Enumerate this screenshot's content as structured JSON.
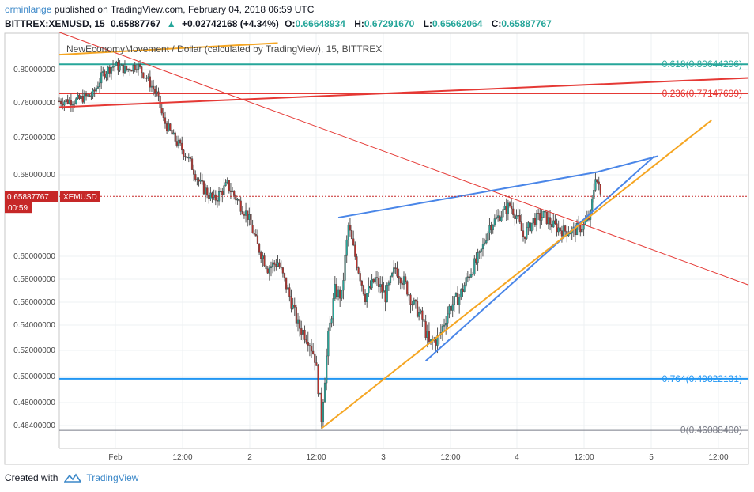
{
  "header": {
    "user": "orminlange",
    "published_text": "published on TradingView.com, February 04, 2018 06:59 UTC",
    "symbol": "BITTREX:XEMUSD, 15",
    "last": "0.65887767",
    "change_arrow": "▲",
    "change": "+0.02742168 (+4.34%)",
    "o_label": "O:",
    "o_value": "0.66648934",
    "h_label": "H:",
    "h_value": "0.67291670",
    "l_label": "L:",
    "l_value": "0.65662064",
    "c_label": "C:",
    "c_value": "0.65887767"
  },
  "footer": {
    "created_with": "Created with",
    "brand": "TradingView"
  },
  "colors": {
    "up": "#26a69a",
    "down": "#b7312c",
    "price_line": "#c62828",
    "fib_teal": "#26a69a",
    "fib_red": "#e53935",
    "fib_blue": "#2196f3",
    "fib_gray": "#787b86",
    "trend_red": "#e53935",
    "trend_blue": "#4a86e8",
    "trend_orange": "#f5a623"
  },
  "chart_data": {
    "type": "candlestick",
    "title": "NewEconomyMovement / Dollar (calculated by TradingView), 15, BITTREX",
    "interval_minutes": 15,
    "x_tick_labels": [
      "Feb",
      "12:00",
      "2",
      "12:00",
      "3",
      "12:00",
      "4",
      "12:00",
      "5",
      "12:00"
    ],
    "y_tick_labels": [
      "0.80000000",
      "0.76000000",
      "0.72000000",
      "0.68000000",
      "0.60000000",
      "0.58000000",
      "0.56000000",
      "0.54000000",
      "0.52000000",
      "0.50000000",
      "0.48000000",
      "0.46400000"
    ],
    "y_ticks": [
      0.8,
      0.76,
      0.72,
      0.68,
      0.6,
      0.58,
      0.56,
      0.54,
      0.52,
      0.5,
      0.48,
      0.464
    ],
    "current_price": 0.65887767,
    "current_price_label": "0.65887767",
    "symbol_badge": "XEMUSD",
    "countdown": "00:59",
    "fib_levels": [
      {
        "label": "0.618(0.80644296)",
        "value": 0.80644296,
        "color": "#26a69a"
      },
      {
        "label": "0.236(0.77147699)",
        "value": 0.77147699,
        "color": "#e53935"
      },
      {
        "label": "0.764(0.49822131)",
        "value": 0.49822131,
        "color": "#2196f3"
      },
      {
        "label": "0(0.46088400)",
        "value": 0.460884,
        "color": "#787b86"
      }
    ],
    "price_anchors": [
      {
        "t": 0,
        "p": 0.762
      },
      {
        "t": 10,
        "p": 0.763
      },
      {
        "t": 20,
        "p": 0.77
      },
      {
        "t": 26,
        "p": 0.795
      },
      {
        "t": 32,
        "p": 0.805
      },
      {
        "t": 40,
        "p": 0.8
      },
      {
        "t": 46,
        "p": 0.806
      },
      {
        "t": 52,
        "p": 0.79
      },
      {
        "t": 58,
        "p": 0.77
      },
      {
        "t": 62,
        "p": 0.74
      },
      {
        "t": 68,
        "p": 0.72
      },
      {
        "t": 76,
        "p": 0.7
      },
      {
        "t": 84,
        "p": 0.67
      },
      {
        "t": 92,
        "p": 0.655
      },
      {
        "t": 100,
        "p": 0.67
      },
      {
        "t": 106,
        "p": 0.655
      },
      {
        "t": 112,
        "p": 0.64
      },
      {
        "t": 118,
        "p": 0.61
      },
      {
        "t": 124,
        "p": 0.59
      },
      {
        "t": 130,
        "p": 0.595
      },
      {
        "t": 136,
        "p": 0.57
      },
      {
        "t": 142,
        "p": 0.54
      },
      {
        "t": 148,
        "p": 0.53
      },
      {
        "t": 152,
        "p": 0.515
      },
      {
        "t": 156,
        "p": 0.47
      },
      {
        "t": 160,
        "p": 0.53
      },
      {
        "t": 164,
        "p": 0.57
      },
      {
        "t": 168,
        "p": 0.565
      },
      {
        "t": 172,
        "p": 0.63
      },
      {
        "t": 176,
        "p": 0.6
      },
      {
        "t": 182,
        "p": 0.565
      },
      {
        "t": 188,
        "p": 0.58
      },
      {
        "t": 194,
        "p": 0.565
      },
      {
        "t": 200,
        "p": 0.59
      },
      {
        "t": 206,
        "p": 0.575
      },
      {
        "t": 210,
        "p": 0.56
      },
      {
        "t": 216,
        "p": 0.545
      },
      {
        "t": 220,
        "p": 0.525
      },
      {
        "t": 226,
        "p": 0.53
      },
      {
        "t": 232,
        "p": 0.555
      },
      {
        "t": 238,
        "p": 0.565
      },
      {
        "t": 244,
        "p": 0.585
      },
      {
        "t": 250,
        "p": 0.6
      },
      {
        "t": 256,
        "p": 0.63
      },
      {
        "t": 262,
        "p": 0.64
      },
      {
        "t": 268,
        "p": 0.65
      },
      {
        "t": 272,
        "p": 0.64
      },
      {
        "t": 276,
        "p": 0.62
      },
      {
        "t": 282,
        "p": 0.635
      },
      {
        "t": 288,
        "p": 0.64
      },
      {
        "t": 294,
        "p": 0.63
      },
      {
        "t": 300,
        "p": 0.625
      },
      {
        "t": 306,
        "p": 0.625
      },
      {
        "t": 312,
        "p": 0.63
      },
      {
        "t": 316,
        "p": 0.64
      },
      {
        "t": 319,
        "p": 0.68
      },
      {
        "t": 322,
        "p": 0.66
      }
    ],
    "trend_lines": [
      {
        "color": "#e53935",
        "width": 1,
        "from": {
          "t": 0,
          "p": 0.845
        },
        "to": {
          "t": 410,
          "p": 0.575
        }
      },
      {
        "color": "#e53935",
        "width": 2,
        "from": {
          "t": 0,
          "p": 0.755
        },
        "to": {
          "t": 410,
          "p": 0.79
        }
      },
      {
        "color": "#f5a623",
        "width": 2,
        "from": {
          "t": 0,
          "p": 0.818
        },
        "to": {
          "t": 130,
          "p": 0.832
        }
      },
      {
        "color": "#4a86e8",
        "width": 2,
        "from": {
          "t": 166,
          "p": 0.638
        },
        "to": {
          "t": 320,
          "p": 0.683
        }
      },
      {
        "color": "#4a86e8",
        "width": 2,
        "from": {
          "t": 320,
          "p": 0.683
        },
        "to": {
          "t": 356,
          "p": 0.7
        }
      },
      {
        "color": "#4a86e8",
        "width": 2,
        "from": {
          "t": 218,
          "p": 0.512
        },
        "to": {
          "t": 354,
          "p": 0.7
        }
      },
      {
        "color": "#f5a623",
        "width": 2,
        "from": {
          "t": 156,
          "p": 0.462
        },
        "to": {
          "t": 388,
          "p": 0.74
        }
      }
    ]
  }
}
